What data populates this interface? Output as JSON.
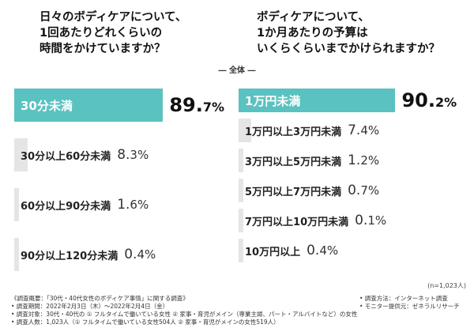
{
  "titles": {
    "left": "日々のボディケアについて、\n1回あたりどれくらいの\n時間をかけていますか？",
    "right": "ボディケアについて、\n1か月あたりの予算は\nいくらくらいまでかけられますか？"
  },
  "subset_label": "― 全体 ―",
  "sample_size": "(n=1,023人)",
  "chart_data": [
    {
      "type": "bar",
      "orientation": "horizontal",
      "title": "日々のボディケアについて、1回あたりどれくらいの時間をかけていますか？",
      "categories": [
        "30分未満",
        "30分以上60分未満",
        "60分以上90分未満",
        "90分以上120分未満"
      ],
      "values": [
        89.7,
        8.3,
        1.6,
        0.4
      ],
      "value_labels": [
        {
          "int": "89.",
          "dec": "7%"
        },
        {
          "int": "8.",
          "dec": "3%"
        },
        {
          "int": "1.",
          "dec": "6%"
        },
        {
          "int": "0.",
          "dec": "4%"
        }
      ],
      "unit": "%",
      "highlight_color": "#5ac2c0",
      "other_color": "#e5e5e5"
    },
    {
      "type": "bar",
      "orientation": "horizontal",
      "title": "ボディケアについて、1か月あたりの予算はいくらくらいまでかけられますか？",
      "categories": [
        "1万円未満",
        "1万円以上3万円未満",
        "3万円以上5万円未満",
        "5万円以上7万円未満",
        "7万円以上10万円未満",
        "10万円以上"
      ],
      "values": [
        90.2,
        7.4,
        1.2,
        0.7,
        0.1,
        0.4
      ],
      "value_labels": [
        {
          "int": "90.",
          "dec": "2%"
        },
        {
          "int": "7.",
          "dec": "4%"
        },
        {
          "int": "1.",
          "dec": "2%"
        },
        {
          "int": "0.",
          "dec": "7%"
        },
        {
          "int": "0.",
          "dec": "1%"
        },
        {
          "int": "0.",
          "dec": "4%"
        }
      ],
      "unit": "%",
      "highlight_color": "#5ac2c0",
      "other_color": "#e5e5e5"
    }
  ],
  "notes_left": [
    "《調査概要：「30代・40代女性のボディケア事情」に関する調査》",
    "• 調査期間：2022年2月3日（木）～2022年2月4日（金）",
    "• 調査対象：30代・40代の ① フルタイムで働いている女性 ② 家事・育児がメイン（専業主婦、パート・アルバイトなど）の女性",
    "• 調査人数：1,023人（① フルタイムで働いている女性504人 ② 家事・育児がメインの女性519人）"
  ],
  "notes_right": [
    "• 調査方法：インターネット調査",
    "• モニター提供元：ゼネラルリサーチ"
  ]
}
